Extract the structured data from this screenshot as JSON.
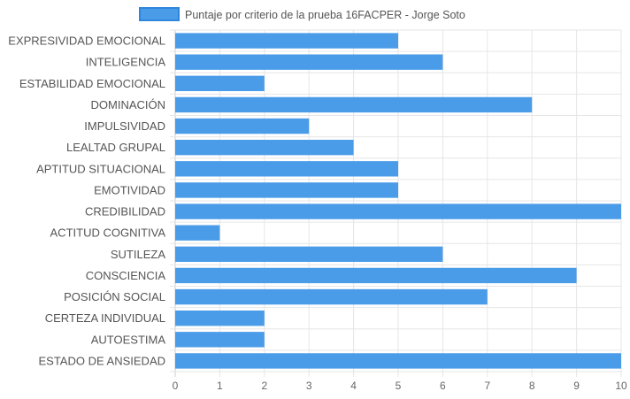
{
  "chart_data": {
    "type": "bar",
    "orientation": "horizontal",
    "legend": {
      "position": "top",
      "label": "Puntaje por criterio de la prueba 16FACPER - Jorge Soto"
    },
    "series": [
      {
        "name": "Puntaje por criterio de la prueba 16FACPER - Jorge Soto",
        "color": "#4a9be8",
        "border_color": "#2f86dd",
        "values": [
          5,
          6,
          2,
          8,
          3,
          4,
          5,
          5,
          10,
          1,
          6,
          9,
          7,
          2,
          2,
          10
        ]
      }
    ],
    "categories": [
      "EXPRESIVIDAD EMOCIONAL",
      "INTELIGENCIA",
      "ESTABILIDAD EMOCIONAL",
      "DOMINACIÓN",
      "IMPULSIVIDAD",
      "LEALTAD GRUPAL",
      "APTITUD SITUACIONAL",
      "EMOTIVIDAD",
      "CREDIBILIDAD",
      "ACTITUD COGNITIVA",
      "SUTILEZA",
      "CONSCIENCIA",
      "POSICIÓN SOCIAL",
      "CERTEZA INDIVIDUAL",
      "AUTOESTIMA",
      "ESTADO DE ANSIEDAD"
    ],
    "xlim": [
      0,
      10
    ],
    "x_ticks": [
      "0",
      "1",
      "2",
      "3",
      "4",
      "5",
      "6",
      "7",
      "8",
      "9",
      "10"
    ],
    "grid": true,
    "grid_color": "#e6e6e6",
    "title": "",
    "xlabel": "",
    "ylabel": ""
  }
}
